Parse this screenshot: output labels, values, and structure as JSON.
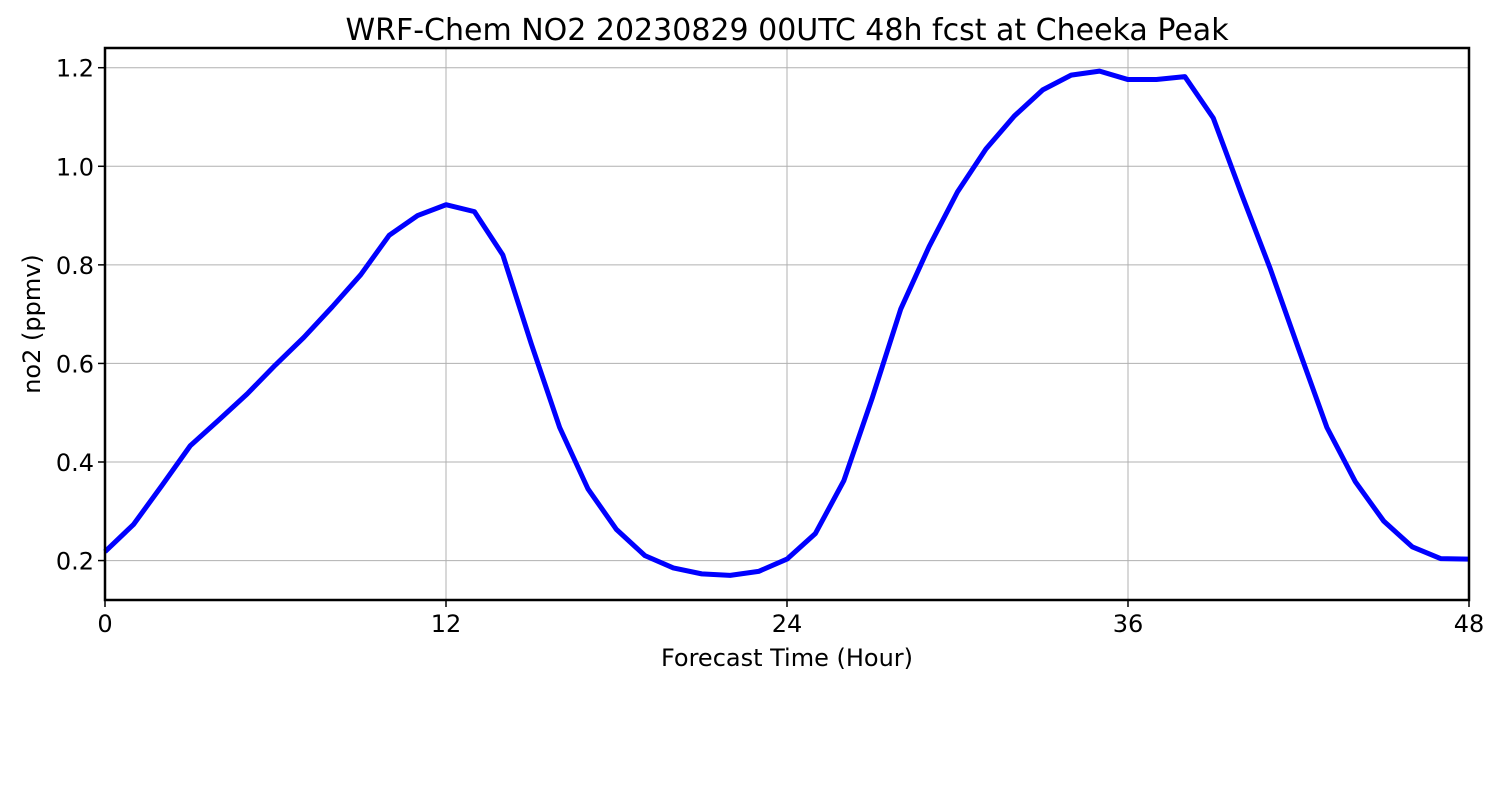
{
  "chart_data": {
    "type": "line",
    "title": "WRF-Chem NO2  20230829 00UTC 48h fcst at Cheeka Peak",
    "xlabel": "Forecast Time (Hour)",
    "ylabel": "no2  (ppmv)",
    "xlim": [
      0,
      48
    ],
    "ylim": [
      0.12,
      1.24
    ],
    "xticks": [
      0,
      12,
      24,
      36,
      48
    ],
    "xtick_labels": [
      "0",
      "12",
      "24",
      "36",
      "48"
    ],
    "yticks": [
      0.2,
      0.4,
      0.6,
      0.8,
      1.0,
      1.2
    ],
    "ytick_labels": [
      "0.2",
      "0.4",
      "0.6",
      "0.8",
      "1.0",
      "1.2"
    ],
    "grid": true,
    "series": [
      {
        "color": "#0000ff",
        "x": [
          0,
          1,
          2,
          3,
          4,
          5,
          6,
          7,
          8,
          9,
          10,
          11,
          12,
          13,
          14,
          15,
          16,
          17,
          18,
          19,
          20,
          21,
          22,
          23,
          24,
          25,
          26,
          27,
          28,
          29,
          30,
          31,
          32,
          33,
          34,
          35,
          36,
          37,
          38,
          39,
          40,
          41,
          42,
          43,
          44,
          45,
          46,
          47,
          48
        ],
        "y": [
          0.218,
          0.273,
          0.352,
          0.433,
          0.485,
          0.538,
          0.597,
          0.653,
          0.715,
          0.78,
          0.86,
          0.9,
          0.922,
          0.908,
          0.82,
          0.64,
          0.47,
          0.345,
          0.263,
          0.21,
          0.185,
          0.173,
          0.17,
          0.178,
          0.203,
          0.255,
          0.362,
          0.53,
          0.71,
          0.837,
          0.948,
          1.035,
          1.102,
          1.155,
          1.185,
          1.193,
          1.176,
          1.176,
          1.182,
          1.098,
          0.943,
          0.793,
          0.63,
          0.47,
          0.36,
          0.28,
          0.228,
          0.204,
          0.203
        ]
      }
    ]
  }
}
